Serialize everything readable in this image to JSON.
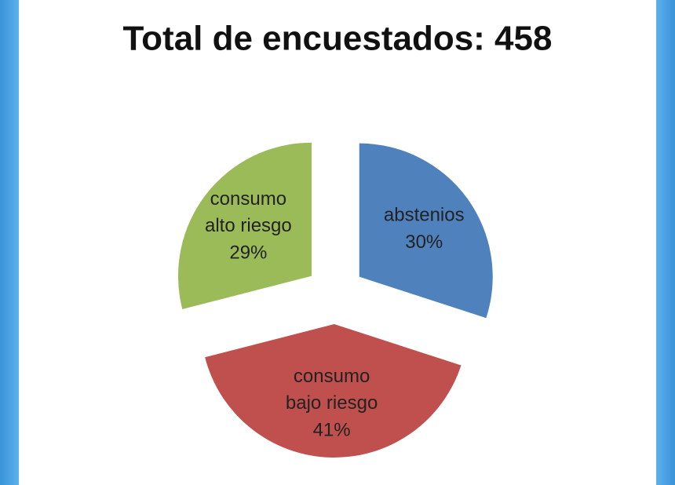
{
  "chart_data": {
    "type": "pie",
    "title": "Total de encuestados: 458",
    "categories": [
      "abstenios",
      "consumo bajo riesgo",
      "consumo alto riesgo"
    ],
    "values": [
      30,
      41,
      29
    ],
    "value_labels": [
      "30%",
      "41%",
      "29%"
    ],
    "colors": [
      "#4f81bd",
      "#c0504d",
      "#9bbb59"
    ]
  }
}
